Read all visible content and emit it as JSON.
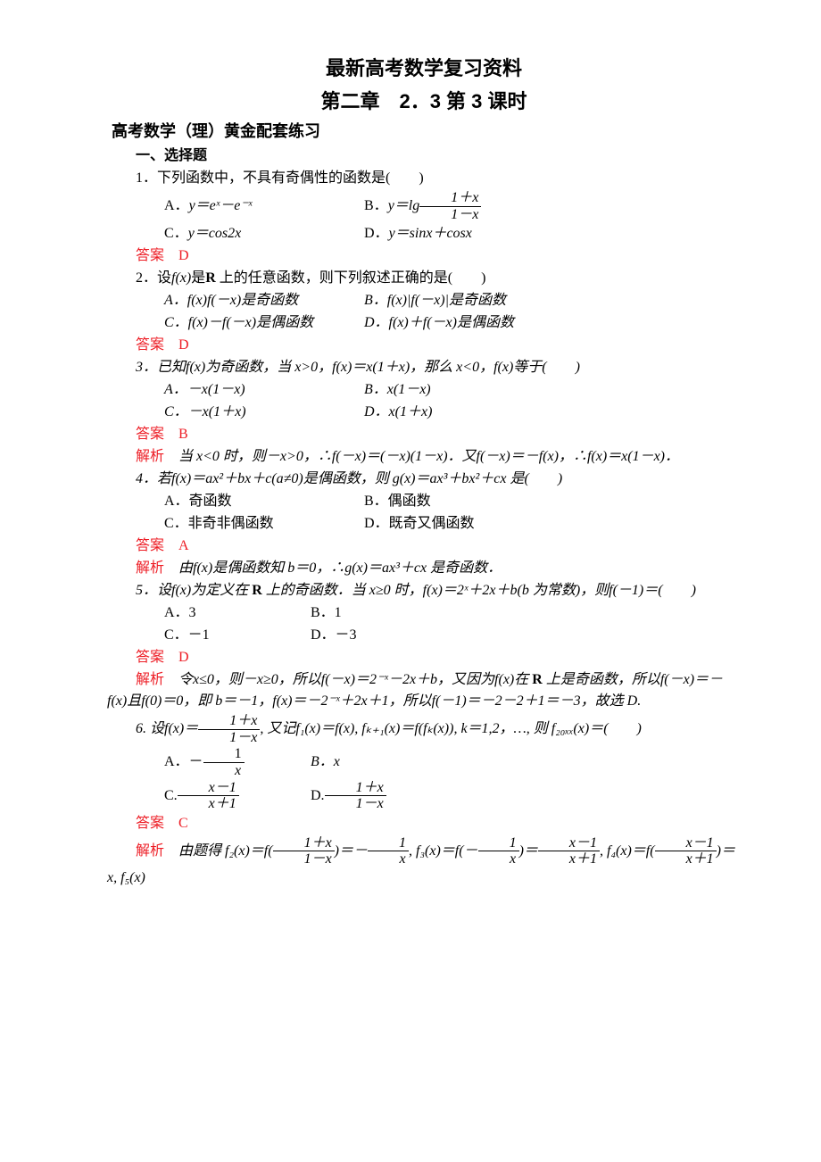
{
  "header": {
    "title": "最新高考数学复习资料",
    "subtitle": "第二章　2．3 第 3 课时",
    "section": "高考数学（理）黄金配套练习",
    "part": "一、选择题"
  },
  "q1": {
    "stem": "1．下列函数中，不具有奇偶性的函数是(　　)",
    "A_pre": "A．",
    "A_math": "y＝eˣ－e⁻ˣ",
    "B_pre": "B．",
    "B_math_pre": "y＝lg",
    "C_pre": "C．",
    "C_math": "y＝cos2x",
    "D_pre": "D．",
    "D_math": "y＝sinx＋cosx",
    "frac_num": "1＋x",
    "frac_den": "1－x",
    "ans": "答案　D"
  },
  "q2": {
    "stem_pre": "2．设",
    "stem_mid": "f(x)",
    "stem_post": "是",
    "stem_R": "R",
    "stem_end": " 上的任意函数，则下列叙述正确的是(　　)",
    "A": "A．f(x)f(－x)是奇函数",
    "B": "B．f(x)|f(－x)|是奇函数",
    "C": "C．f(x)－f(－x)是偶函数",
    "D": "D．f(x)＋f(－x)是偶函数",
    "ans": "答案　D"
  },
  "q3": {
    "stem": "3．已知f(x)为奇函数，当 x>0，f(x)＝x(1＋x)，那么 x<0，f(x)等于(　　)",
    "A": "A．－x(1－x)",
    "B": "B．x(1－x)",
    "C": "C．－x(1＋x)",
    "D": "D．x(1＋x)",
    "ans": "答案　B",
    "exp_label": "解析",
    "exp": "　当 x<0 时，则－x>0，∴f(－x)＝(－x)(1－x)．又f(－x)＝－f(x)，∴f(x)＝x(1－x)．"
  },
  "q4": {
    "stem": "4．若f(x)＝ax²＋bx＋c(a≠0)是偶函数，则 g(x)＝ax³＋bx²＋cx 是(　　)",
    "A": "A．奇函数",
    "B": "B．偶函数",
    "C": "C．非奇非偶函数",
    "D": "D．既奇又偶函数",
    "ans": "答案　A",
    "exp_label": "解析",
    "exp": "　由f(x)是偶函数知 b＝0，∴g(x)＝ax³＋cx 是奇函数．"
  },
  "q5": {
    "stem1": "5．设f(x)为定义在 ",
    "stem_R": "R",
    "stem2": " 上的奇函数．当 x≥0 时，f(x)＝2ˣ＋2x＋b(b 为常数)，则f(－1)＝(　　)",
    "A": "A．3",
    "B": "B．1",
    "C": "C．－1",
    "D": "D．－3",
    "ans": "答案　D",
    "exp_label": "解析",
    "exp1": "　令x≤0，则－x≥0，所以f(－x)＝2⁻ˣ－2x＋b，又因为f(x)在 ",
    "exp_R": "R",
    "exp2": " 上是奇函数，所以f(－x)＝－f(x)且f(0)＝0，即 b＝－1，f(x)＝－2⁻ˣ＋2x＋1，所以f(－1)＝－2－2＋1＝－3，故选 D."
  },
  "q6": {
    "stem_pre": "6. 设f(x)＝",
    "frac1_num": "1＋x",
    "frac1_den": "1－x",
    "stem_mid": ", 又记f₁(x)＝f(x), fₖ₊₁(x)＝f(fₖ(x)), k＝1,2，…, 则 f₂₀ₓₓ(x)＝(　　)",
    "A_pre": "A．－",
    "A_frac_num": "1",
    "A_frac_den": "x",
    "B": "B．x",
    "C_pre": "C.",
    "C_frac_num": "x－1",
    "C_frac_den": "x＋1",
    "D_pre": "D.",
    "D_frac_num": "1＋x",
    "D_frac_den": "1－x",
    "ans": "答案　C",
    "exp_label": "解析",
    "exp_pre": "　由题得 f₂(x)＝f(",
    "f2_num": "1＋x",
    "f2_den": "1－x",
    "exp_eq1": ")＝－",
    "f2r_num": "1",
    "f2r_den": "x",
    "exp_mid1": ", f₃(x)＝f(－",
    "f3a_num": "1",
    "f3a_den": "x",
    "exp_eq2": ")＝",
    "f3r_num": "x－1",
    "f3r_den": "x＋1",
    "exp_mid2": ", f₄(x)＝f(",
    "f4a_num": "x－1",
    "f4a_den": "x＋1",
    "exp_eq3": ")＝x, f₅(x)"
  }
}
